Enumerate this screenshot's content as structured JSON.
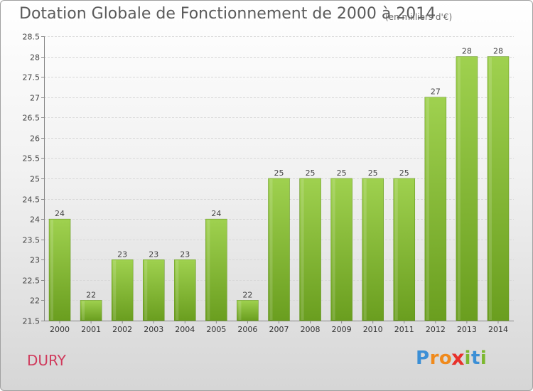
{
  "chart_data": {
    "type": "bar",
    "title": "Dotation Globale de Fonctionnement de 2000 à 2014",
    "subtitle": "(en milliers d'€)",
    "categories": [
      "2000",
      "2001",
      "2002",
      "2003",
      "2004",
      "2005",
      "2006",
      "2007",
      "2008",
      "2009",
      "2010",
      "2011",
      "2012",
      "2013",
      "2014"
    ],
    "values": [
      24,
      22,
      23,
      23,
      23,
      24,
      22,
      25,
      25,
      25,
      25,
      25,
      27,
      28,
      28
    ],
    "data_labels": [
      "24",
      "22",
      "23",
      "23",
      "23",
      "24",
      "22",
      "25",
      "25",
      "25",
      "25",
      "25",
      "27",
      "28",
      "28"
    ],
    "ylim": [
      21.5,
      28.5
    ],
    "yticks": [
      21.5,
      22,
      22.5,
      23,
      23.5,
      24,
      24.5,
      25,
      25.5,
      26,
      26.5,
      27,
      27.5,
      28,
      28.5
    ],
    "ytick_labels": [
      "21.5",
      "22",
      "22.5",
      "23",
      "23.5",
      "24",
      "24.5",
      "25",
      "25.5",
      "26",
      "26.5",
      "27",
      "27.5",
      "28",
      "28.5"
    ],
    "grid": true,
    "bar_color_top": "#9fd14f",
    "bar_color_bottom": "#6a9e1f",
    "xlabel": "",
    "ylabel": ""
  },
  "commune": "DURY",
  "logo": {
    "text": "Proxiti",
    "letters": [
      "P",
      "r",
      "o",
      "x",
      "i",
      "t",
      "i"
    ],
    "colors": [
      "#3b8fd6",
      "#f08a1c",
      "#f08a1c",
      "#e8312b",
      "#7cb82f",
      "#3b8fd6",
      "#7cb82f"
    ]
  }
}
